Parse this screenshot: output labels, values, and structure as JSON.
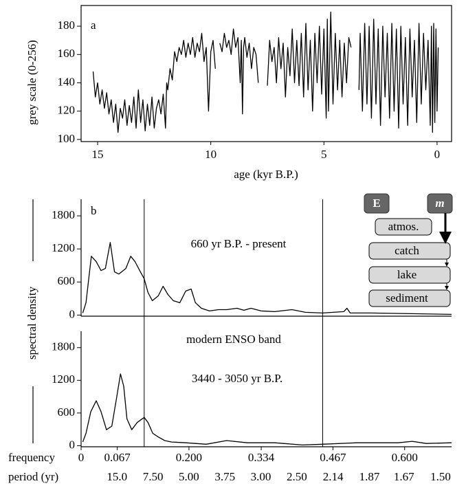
{
  "chart_data": [
    {
      "type": "line",
      "xlabel": "age (kyr B.P.)",
      "ylabel": "grey scale (0-256)",
      "annotations": [
        "a"
      ],
      "color": "#000000",
      "xlim": [
        15.73,
        -0.64
      ],
      "ylim": [
        98.5,
        194.6
      ],
      "xticks": [
        15,
        10,
        5,
        0
      ],
      "yticks": [
        100,
        120,
        140,
        160,
        180
      ],
      "x": [
        15.2,
        15.1,
        15.0,
        14.9,
        14.8,
        14.7,
        14.6,
        14.5,
        14.4,
        14.3,
        14.2,
        14.1,
        14.0,
        13.9,
        13.8,
        13.7,
        13.6,
        13.5,
        13.4,
        13.3,
        13.2,
        13.1,
        13.0,
        12.9,
        12.8,
        12.7,
        12.6,
        12.5,
        12.4,
        12.3,
        12.2,
        12.1,
        12.0,
        11.95,
        11.9,
        11.8,
        11.7,
        11.6,
        11.5,
        11.4,
        11.3,
        11.2,
        11.1,
        11.0,
        10.9,
        10.8,
        10.7,
        10.6,
        10.5,
        10.4,
        10.3,
        10.2,
        10.1,
        10.0,
        9.9,
        9.8,
        9.7,
        9.6,
        9.5,
        9.4,
        9.3,
        9.2,
        9.1,
        9.0,
        8.9,
        8.8,
        8.7,
        8.65,
        8.6,
        8.55,
        8.5,
        8.4,
        8.3,
        8.2,
        8.1,
        8.0,
        7.9,
        7.7,
        7.5,
        7.4,
        7.3,
        7.2,
        7.1,
        7.0,
        6.9,
        6.8,
        6.7,
        6.6,
        6.5,
        6.4,
        6.3,
        6.2,
        6.1,
        6.0,
        5.9,
        5.8,
        5.7,
        5.6,
        5.5,
        5.4,
        5.3,
        5.2,
        5.1,
        5.0,
        4.9,
        4.85,
        4.8,
        4.7,
        4.6,
        4.5,
        4.4,
        4.3,
        4.2,
        4.1,
        4.0,
        3.9,
        3.8,
        3.6,
        3.45,
        3.4,
        3.3,
        3.2,
        3.1,
        3.0,
        2.9,
        2.8,
        2.7,
        2.6,
        2.5,
        2.4,
        2.3,
        2.2,
        2.1,
        2.0,
        1.9,
        1.8,
        1.7,
        1.6,
        1.5,
        1.4,
        1.3,
        1.2,
        1.1,
        1.0,
        0.9,
        0.8,
        0.7,
        0.6,
        0.5,
        0.4,
        0.3,
        0.25,
        0.2,
        0.15,
        0.1,
        0.05,
        0.0,
        -0.05
      ],
      "values": [
        148,
        130,
        140,
        125,
        135,
        122,
        133,
        118,
        128,
        112,
        125,
        105,
        122,
        115,
        128,
        110,
        124,
        112,
        130,
        108,
        135,
        112,
        128,
        106,
        125,
        110,
        130,
        108,
        122,
        128,
        118,
        132,
        108,
        140,
        135,
        150,
        142,
        162,
        155,
        165,
        160,
        170,
        158,
        168,
        160,
        172,
        158,
        168,
        162,
        175,
        155,
        165,
        120,
        162,
        170,
        150,
        null,
        168,
        162,
        175,
        165,
        170,
        160,
        178,
        165,
        172,
        140,
        170,
        118,
        165,
        172,
        158,
        168,
        150,
        165,
        160,
        140,
        null,
        138,
        170,
        155,
        165,
        140,
        172,
        150,
        168,
        130,
        165,
        145,
        178,
        140,
        170,
        138,
        175,
        130,
        182,
        135,
        170,
        120,
        175,
        140,
        180,
        132,
        178,
        115,
        185,
        120,
        190,
        125,
        175,
        135,
        170,
        130,
        168,
        140,
        172,
        165,
        null,
        135,
        175,
        120,
        182,
        125,
        180,
        115,
        185,
        125,
        178,
        110,
        180,
        130,
        175,
        115,
        182,
        120,
        178,
        108,
        180,
        125,
        172,
        110,
        178,
        130,
        170,
        112,
        182,
        125,
        175,
        135,
        170,
        110,
        180,
        105,
        182,
        112,
        178,
        120,
        165
      ]
    },
    {
      "type": "line",
      "ylabel": "spectral density",
      "annotations": [
        "b",
        "660 yr B.P. - present"
      ],
      "color": "#000000",
      "xlim": [
        0,
        0.687
      ],
      "ylim": [
        -20,
        2100
      ],
      "yticks": [
        0,
        600,
        1200,
        1800
      ],
      "vlines": [
        0.117,
        0.448
      ],
      "x": [
        0.003,
        0.009,
        0.019,
        0.028,
        0.037,
        0.045,
        0.054,
        0.062,
        0.07,
        0.083,
        0.092,
        0.1,
        0.108,
        0.117,
        0.124,
        0.132,
        0.143,
        0.152,
        0.161,
        0.171,
        0.183,
        0.194,
        0.204,
        0.212,
        0.223,
        0.238,
        0.255,
        0.27,
        0.289,
        0.302,
        0.315,
        0.334,
        0.359,
        0.391,
        0.416,
        0.448,
        0.487,
        0.493,
        0.499,
        0.538,
        0.614,
        0.687
      ],
      "values": [
        37,
        224,
        1068,
        969,
        807,
        845,
        1317,
        783,
        745,
        845,
        1068,
        969,
        820,
        658,
        410,
        261,
        348,
        522,
        373,
        261,
        224,
        435,
        472,
        224,
        124,
        75,
        99,
        99,
        124,
        87,
        124,
        75,
        62,
        99,
        50,
        37,
        62,
        124,
        37,
        37,
        25,
        12
      ]
    },
    {
      "type": "line",
      "annotations": [
        "modern ENSO band",
        "3440 - 3050 yr B.P."
      ],
      "color": "#000000",
      "xlabel": "frequency",
      "x2label": "period (yr)",
      "x2scale": "reciprocal",
      "xlim": [
        0,
        0.687
      ],
      "ylim": [
        -20,
        2100
      ],
      "yticks": [
        0,
        600,
        1200,
        1800
      ],
      "xticks": [
        0,
        0.067,
        {
          "value": 0.2,
          "label": "0.200"
        },
        0.334,
        0.467,
        {
          "value": 0.6,
          "label": "0.600"
        }
      ],
      "x2ticks": [
        {
          "value": 15,
          "label": "15.0"
        },
        {
          "value": 7.5,
          "label": "7.50"
        },
        {
          "value": 5,
          "label": "5.00"
        },
        3.75,
        {
          "value": 3,
          "label": "3.00"
        },
        {
          "value": 2.5,
          "label": "2.50"
        },
        2.14,
        1.87,
        1.67,
        {
          "value": 1.5,
          "label": "1.50"
        }
      ],
      "x": [
        0.003,
        0.009,
        0.018,
        0.028,
        0.037,
        0.047,
        0.057,
        0.066,
        0.073,
        0.079,
        0.085,
        0.094,
        0.104,
        0.117,
        0.124,
        0.133,
        0.143,
        0.155,
        0.168,
        0.194,
        0.232,
        0.27,
        0.308,
        0.359,
        0.41,
        0.448,
        0.512,
        0.588,
        0.614,
        0.64,
        0.687
      ],
      "values": [
        67,
        226,
        625,
        824,
        625,
        293,
        359,
        891,
        1317,
        1090,
        492,
        293,
        426,
        519,
        426,
        226,
        160,
        93,
        67,
        53,
        27,
        93,
        53,
        53,
        13,
        27,
        53,
        53,
        80,
        40,
        53
      ]
    }
  ],
  "diagram": {
    "labels": {
      "e": "E",
      "m": "m",
      "atmos": "atmos.",
      "catch": "catch",
      "lake": "lake",
      "sediment": "sediment"
    }
  }
}
